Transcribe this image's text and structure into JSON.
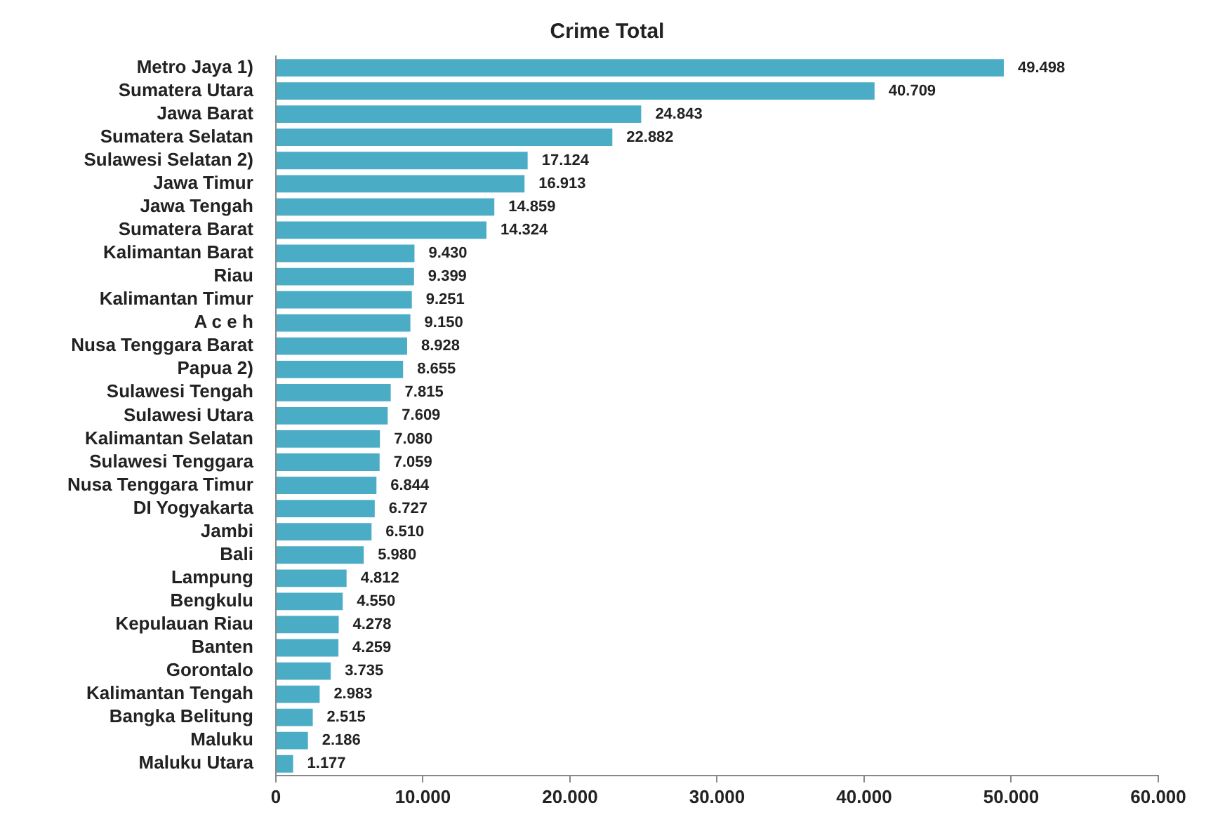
{
  "chart_data": {
    "type": "bar",
    "orientation": "horizontal",
    "title": "Crime Total",
    "categories": [
      "Metro Jaya 1)",
      "Sumatera Utara",
      "Jawa Barat",
      "Sumatera Selatan",
      "Sulawesi Selatan 2)",
      "Jawa Timur",
      "Jawa Tengah",
      "Sumatera Barat",
      "Kalimantan Barat",
      "Riau",
      "Kalimantan Timur",
      "A c e h",
      "Nusa Tenggara Barat",
      "Papua 2)",
      "Sulawesi Tengah",
      "Sulawesi Utara",
      "Kalimantan Selatan",
      "Sulawesi Tenggara",
      "Nusa Tenggara Timur",
      "DI Yogyakarta",
      "Jambi",
      "Bali",
      "Lampung",
      "Bengkulu",
      "Kepulauan Riau",
      "Banten",
      "Gorontalo",
      "Kalimantan Tengah",
      "Bangka Belitung",
      "Maluku",
      "Maluku Utara"
    ],
    "values": [
      49498,
      40709,
      24843,
      22882,
      17124,
      16913,
      14859,
      14324,
      9430,
      9399,
      9251,
      9150,
      8928,
      8655,
      7815,
      7609,
      7080,
      7059,
      6844,
      6727,
      6510,
      5980,
      4812,
      4550,
      4278,
      4259,
      3735,
      2983,
      2515,
      2186,
      1177
    ],
    "value_labels": [
      "49.498",
      "40.709",
      "24.843",
      "22.882",
      "17.124",
      "16.913",
      "14.859",
      "14.324",
      "9.430",
      "9.399",
      "9.251",
      "9.150",
      "8.928",
      "8.655",
      "7.815",
      "7.609",
      "7.080",
      "7.059",
      "6.844",
      "6.727",
      "6.510",
      "5.980",
      "4.812",
      "4.550",
      "4.278",
      "4.259",
      "3.735",
      "2.983",
      "2.515",
      "2.186",
      "1.177"
    ],
    "color": "#4bacc6",
    "xlim": [
      0,
      60000
    ],
    "xticks": [
      0,
      {
        "value": 10000,
        "label": "10.000"
      },
      {
        "value": 20000,
        "label": "20.000"
      },
      {
        "value": 30000,
        "label": "30.000"
      },
      {
        "value": 40000,
        "label": "40.000"
      },
      {
        "value": 50000,
        "label": "50.000"
      },
      {
        "value": 60000,
        "label": "60.000"
      }
    ],
    "grid": false,
    "legend": false
  }
}
